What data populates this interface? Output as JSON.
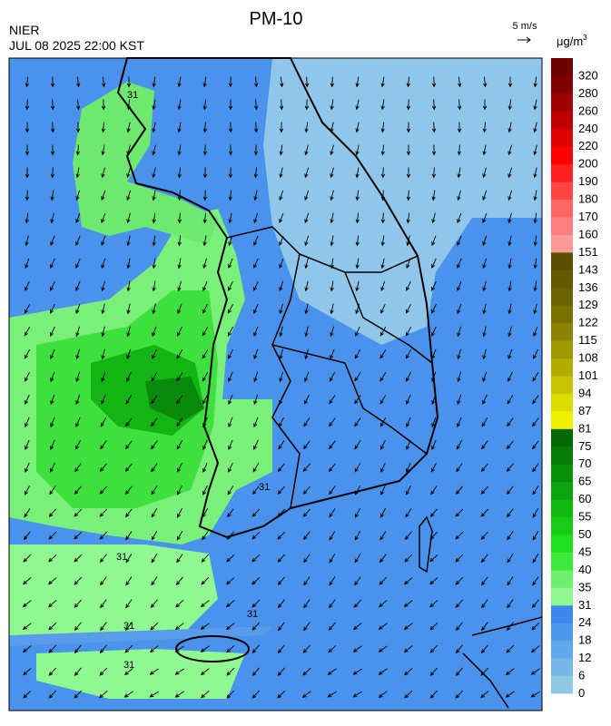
{
  "header": {
    "title": "PM-10",
    "agency": "NIER",
    "timestamp": "JUL 08 2025 22:00 KST",
    "wind_scale": "5 m/s",
    "unit": {
      "text": "μg/m",
      "superscript": "3"
    }
  },
  "colorbar": {
    "labels": [
      0,
      6,
      12,
      18,
      24,
      31,
      35,
      40,
      45,
      50,
      55,
      60,
      65,
      70,
      75,
      81,
      87,
      94,
      101,
      108,
      115,
      122,
      129,
      136,
      143,
      151,
      160,
      170,
      180,
      190,
      200,
      220,
      240,
      260,
      280,
      320
    ],
    "colors": [
      "#90c8e4",
      "#78b8e8",
      "#62a8ec",
      "#4e98ee",
      "#3c88f0",
      "#90f890",
      "#6ef06e",
      "#3ee83e",
      "#1ee01e",
      "#16cc16",
      "#10b810",
      "#0ca40c",
      "#089008",
      "#067c06",
      "#046804",
      "#f0f000",
      "#dcdc00",
      "#c8c400",
      "#b4ac00",
      "#a09800",
      "#8c8400",
      "#7a7200",
      "#6c6400",
      "#625a00",
      "#5a5000",
      "#ff9a9a",
      "#ff8080",
      "#ff6666",
      "#ff4444",
      "#ff2020",
      "#ff0000",
      "#e00000",
      "#c00000",
      "#a00000",
      "#800000",
      "#700000"
    ]
  },
  "contour_labels": [
    "31",
    "31",
    "31",
    "31",
    "31",
    "31"
  ]
}
